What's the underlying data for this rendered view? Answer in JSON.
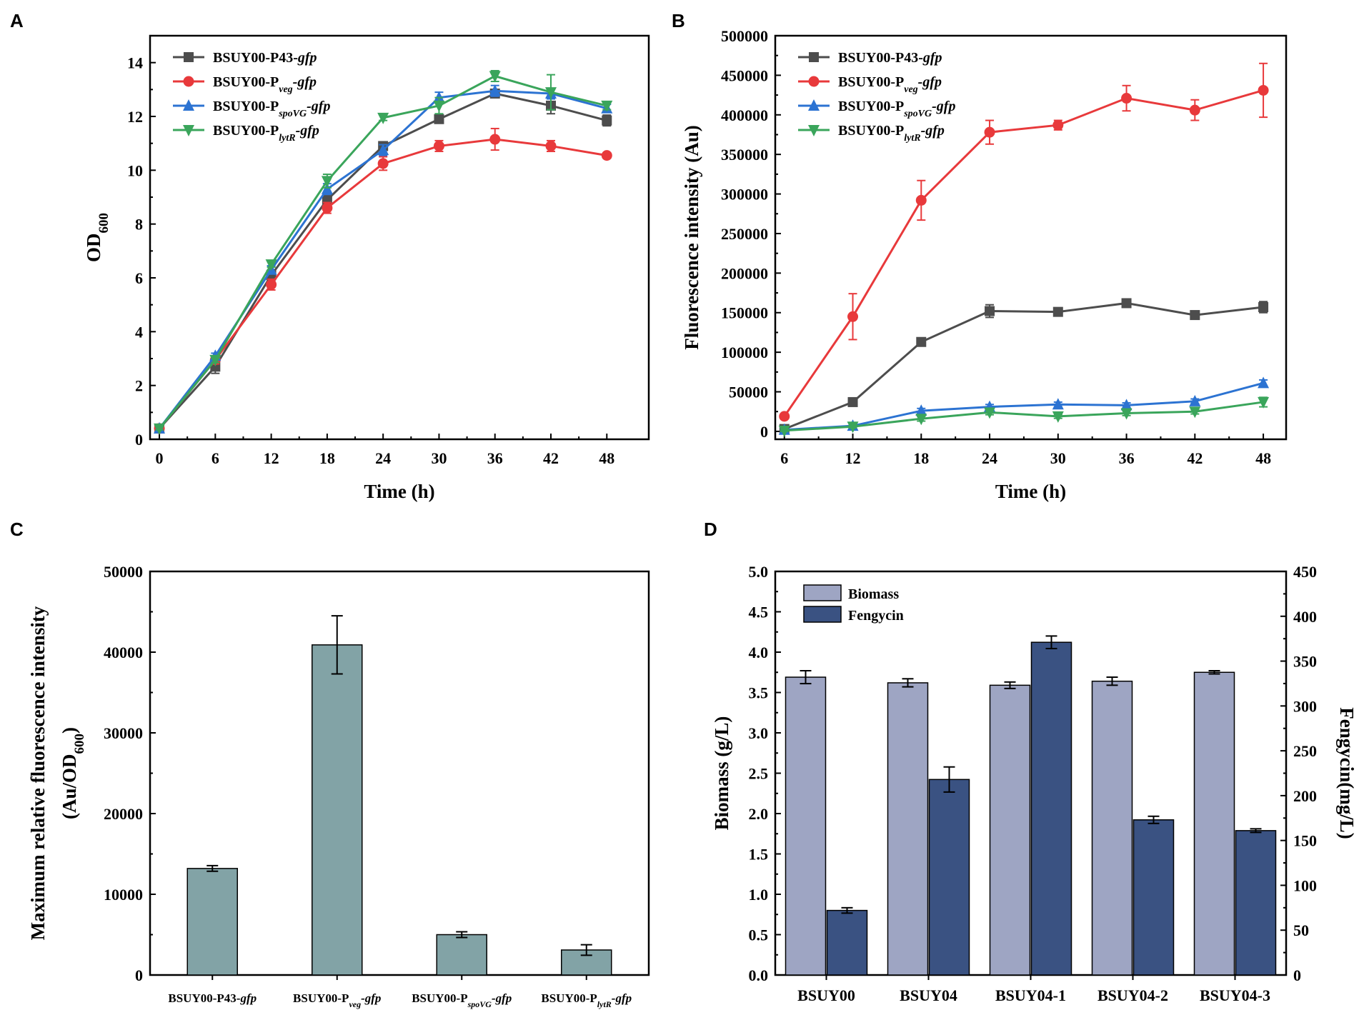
{
  "chart_data": [
    {
      "panel": "A",
      "type": "line",
      "xlabel": "Time (h)",
      "ylabel": "OD",
      "ylabel_sub": "600",
      "xticks": [
        0,
        6,
        12,
        18,
        24,
        30,
        36,
        42,
        48
      ],
      "yticks": [
        0,
        2,
        4,
        6,
        8,
        10,
        12,
        14
      ],
      "xlim": [
        -1,
        52.5
      ],
      "ylim": [
        0,
        15
      ],
      "legend": "top-left",
      "series": [
        {
          "name": "BSUY00-P43-",
          "italic": "gfp",
          "sub": "",
          "color": "#4d4d4d",
          "marker": "square",
          "x": [
            0,
            6,
            12,
            18,
            24,
            30,
            36,
            42,
            48
          ],
          "values": [
            0.4,
            2.7,
            6.1,
            8.9,
            10.9,
            11.9,
            12.85,
            12.4,
            11.85
          ],
          "err": [
            0.1,
            0.25,
            0.2,
            0.2,
            0.15,
            0.15,
            0.15,
            0.3,
            0.2
          ]
        },
        {
          "name": "BSUY00-P",
          "sub": "veg",
          "italic": "-gfp",
          "color": "#e8393b",
          "marker": "circle",
          "x": [
            0,
            6,
            12,
            18,
            24,
            30,
            36,
            42,
            48
          ],
          "values": [
            0.4,
            2.95,
            5.75,
            8.6,
            10.25,
            10.9,
            11.15,
            10.9,
            10.55
          ],
          "err": [
            0.05,
            0.15,
            0.2,
            0.2,
            0.25,
            0.2,
            0.4,
            0.2,
            0.1
          ]
        },
        {
          "name": "BSUY00-P",
          "sub": "spoVG",
          "italic": "-gfp",
          "color": "#2c73d2",
          "marker": "triangle-up",
          "x": [
            0,
            6,
            12,
            18,
            24,
            30,
            36,
            42,
            48
          ],
          "values": [
            0.4,
            3.1,
            6.3,
            9.3,
            10.75,
            12.7,
            12.95,
            12.85,
            12.3
          ],
          "err": [
            0.05,
            0.1,
            0.15,
            0.2,
            0.2,
            0.2,
            0.2,
            0.2,
            0.15
          ]
        },
        {
          "name": "BSUY00-P",
          "sub": "lytR",
          "italic": "-gfp",
          "color": "#3aa55b",
          "marker": "triangle-down",
          "x": [
            0,
            6,
            12,
            18,
            24,
            30,
            36,
            42,
            48
          ],
          "values": [
            0.4,
            2.95,
            6.5,
            9.6,
            11.95,
            12.4,
            13.5,
            12.9,
            12.4
          ],
          "err": [
            0.05,
            0.1,
            0.1,
            0.25,
            0.1,
            0.3,
            0.2,
            0.65,
            0.15
          ]
        }
      ]
    },
    {
      "panel": "B",
      "type": "line",
      "xlabel": "Time (h)",
      "ylabel": "Fluorescence intensity (Au)",
      "xticks": [
        6,
        12,
        18,
        24,
        30,
        36,
        42,
        48
      ],
      "yticks": [
        0,
        50000,
        100000,
        150000,
        200000,
        250000,
        300000,
        350000,
        400000,
        450000,
        500000
      ],
      "xlim": [
        5.2,
        50
      ],
      "ylim": [
        -10000,
        500000
      ],
      "legend": "top-left",
      "series": [
        {
          "name": "BSUY00-P43-",
          "italic": "gfp",
          "sub": "",
          "color": "#4d4d4d",
          "marker": "square",
          "x": [
            6,
            12,
            18,
            24,
            30,
            36,
            42,
            48
          ],
          "values": [
            3000,
            37000,
            113000,
            152000,
            151000,
            162000,
            147000,
            157000
          ],
          "err": [
            1500,
            3000,
            3000,
            8000,
            3000,
            5000,
            4000,
            7000
          ]
        },
        {
          "name": "BSUY00-P",
          "sub": "veg",
          "italic": "-gfp",
          "color": "#e8393b",
          "marker": "circle",
          "x": [
            6,
            12,
            18,
            24,
            30,
            36,
            42,
            48
          ],
          "values": [
            19000,
            145000,
            292000,
            378000,
            387000,
            421000,
            406000,
            431000
          ],
          "err": [
            2000,
            29000,
            25000,
            15000,
            6000,
            16000,
            13000,
            34000
          ]
        },
        {
          "name": "BSUY00-P",
          "sub": "spoVG",
          "italic": "-gfp",
          "color": "#2c73d2",
          "marker": "triangle-up",
          "x": [
            6,
            12,
            18,
            24,
            30,
            36,
            42,
            48
          ],
          "values": [
            2000,
            7000,
            26000,
            31000,
            34000,
            33000,
            38000,
            61000
          ],
          "err": [
            1000,
            1500,
            3000,
            3000,
            3000,
            3000,
            3000,
            4000
          ]
        },
        {
          "name": "BSUY00-P",
          "sub": "lytR",
          "italic": "-gfp",
          "color": "#3aa55b",
          "marker": "triangle-down",
          "x": [
            6,
            12,
            18,
            24,
            30,
            36,
            42,
            48
          ],
          "values": [
            1000,
            6000,
            16000,
            24000,
            19000,
            23000,
            25000,
            37000
          ],
          "err": [
            1000,
            1500,
            3000,
            3000,
            2500,
            3000,
            3000,
            6000
          ]
        }
      ]
    },
    {
      "panel": "C",
      "type": "bar",
      "ylabel_line1": "Maximum relative fluorescence intensity",
      "ylabel_line2": "(Au/OD",
      "ylabel_sub": "600",
      "ylabel_close": ")",
      "yticks": [
        0,
        10000,
        20000,
        30000,
        40000,
        50000
      ],
      "ylim": [
        0,
        50000
      ],
      "bar_color": "#82a3a6",
      "categories": [
        {
          "pre": "BSUY00-P43-",
          "sub": "",
          "post": "gfp"
        },
        {
          "pre": "BSUY00-P",
          "sub": "veg",
          "post": "-gfp"
        },
        {
          "pre": "BSUY00-P",
          "sub": "spoVG",
          "post": "-gfp"
        },
        {
          "pre": "BSUY00-P",
          "sub": "lytR",
          "post": "-gfp"
        }
      ],
      "values": [
        13200,
        40900,
        5000,
        3100
      ],
      "err": [
        350,
        3600,
        350,
        650
      ]
    },
    {
      "panel": "D",
      "type": "bar",
      "ylabel_left": "Biomass (g/L)",
      "ylabel_right": "Fengycin(mg/L)",
      "yticks_left": [
        "0.0",
        "0.5",
        "1.0",
        "1.5",
        "2.0",
        "2.5",
        "3.0",
        "3.5",
        "4.0",
        "4.5",
        "5.0"
      ],
      "yticks_right": [
        "0",
        "50",
        "100",
        "150",
        "200",
        "250",
        "300",
        "350",
        "400",
        "450"
      ],
      "ylim_left": [
        0,
        5
      ],
      "ylim_right": [
        0,
        450
      ],
      "categories": [
        "BSUY00",
        "BSUY04",
        "BSUY04-1",
        "BSUY04-2",
        "BSUY04-3"
      ],
      "legend": "top-left",
      "series": [
        {
          "name": "Biomass",
          "axis": "left",
          "color": "#9ea5c3",
          "values": [
            3.69,
            3.62,
            3.59,
            3.64,
            3.75
          ],
          "err": [
            0.08,
            0.05,
            0.04,
            0.05,
            0.02
          ]
        },
        {
          "name": "Fengycin",
          "axis": "right",
          "color": "#3a5282",
          "values": [
            72,
            218,
            371,
            173,
            161
          ],
          "err": [
            3,
            14,
            7,
            4,
            2
          ]
        }
      ]
    }
  ]
}
